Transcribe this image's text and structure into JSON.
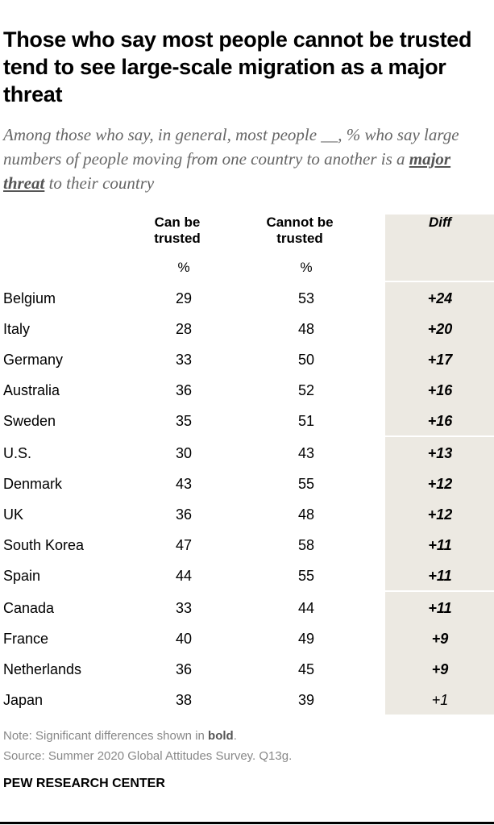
{
  "chart_data": {
    "type": "table",
    "title": "Those who say most people cannot be trusted tend to see large-scale migration as a major threat",
    "subtitle_before": "Among those who say, in general, most people __, % who say large numbers of people moving from one country to another is a ",
    "subtitle_emph": "major threat",
    "subtitle_after": " to their country",
    "columns": [
      "Can be trusted",
      "Cannot be trusted",
      "Diff"
    ],
    "units": [
      "%",
      "%",
      ""
    ],
    "rows": [
      {
        "country": "Belgium",
        "can": 29,
        "cannot": 53,
        "diff": "+24",
        "bold": true
      },
      {
        "country": "Italy",
        "can": 28,
        "cannot": 48,
        "diff": "+20",
        "bold": true
      },
      {
        "country": "Germany",
        "can": 33,
        "cannot": 50,
        "diff": "+17",
        "bold": true
      },
      {
        "country": "Australia",
        "can": 36,
        "cannot": 52,
        "diff": "+16",
        "bold": true
      },
      {
        "country": "Sweden",
        "can": 35,
        "cannot": 51,
        "diff": "+16",
        "bold": true
      },
      {
        "country": "U.S.",
        "can": 30,
        "cannot": 43,
        "diff": "+13",
        "bold": true
      },
      {
        "country": "Denmark",
        "can": 43,
        "cannot": 55,
        "diff": "+12",
        "bold": true
      },
      {
        "country": "UK",
        "can": 36,
        "cannot": 48,
        "diff": "+12",
        "bold": true
      },
      {
        "country": "South Korea",
        "can": 47,
        "cannot": 58,
        "diff": "+11",
        "bold": true
      },
      {
        "country": "Spain",
        "can": 44,
        "cannot": 55,
        "diff": "+11",
        "bold": true
      },
      {
        "country": "Canada",
        "can": 33,
        "cannot": 44,
        "diff": "+11",
        "bold": true
      },
      {
        "country": "France",
        "can": 40,
        "cannot": 49,
        "diff": "+9",
        "bold": true
      },
      {
        "country": "Netherlands",
        "can": 36,
        "cannot": 45,
        "diff": "+9",
        "bold": true
      },
      {
        "country": "Japan",
        "can": 38,
        "cannot": 39,
        "diff": "+1",
        "bold": false
      }
    ],
    "diff_background": "#ece9e2"
  },
  "note_prefix": "Note: Significant differences shown in ",
  "note_bold": "bold",
  "note_suffix": ".",
  "source": "Source: Summer 2020 Global Attitudes Survey. Q13g.",
  "logo": "PEW RESEARCH CENTER"
}
